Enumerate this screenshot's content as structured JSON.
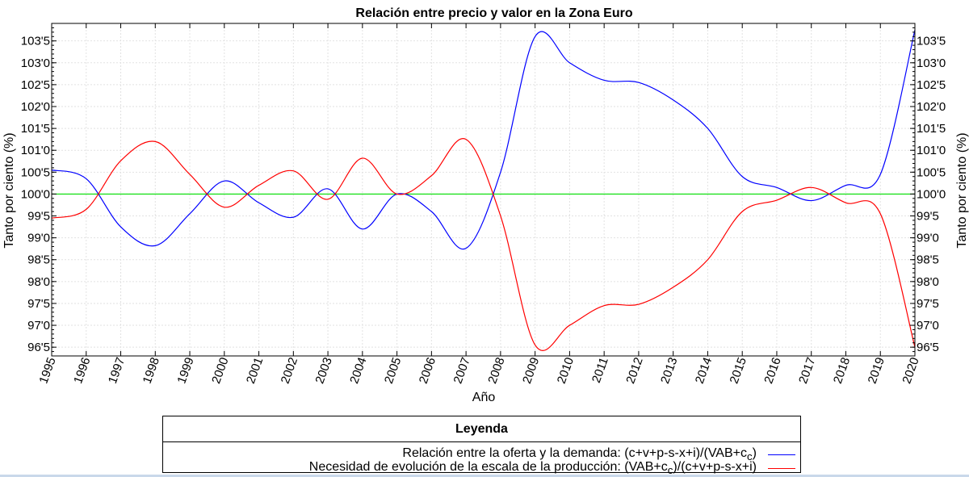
{
  "chart_data": {
    "type": "line",
    "title": "Relación entre precio y valor en la Zona Euro",
    "xlabel": "Año",
    "ylabel": "Tanto por ciento (%)",
    "ylabel_right": "Tanto por ciento (%)",
    "xlim": [
      1995,
      2020
    ],
    "ylim": [
      96.3,
      103.9
    ],
    "x_ticks": [
      "1995",
      "1996",
      "1997",
      "1998",
      "1999",
      "2000",
      "2001",
      "2002",
      "2003",
      "2004",
      "2005",
      "2006",
      "2007",
      "2008",
      "2009",
      "2010",
      "2011",
      "2012",
      "2013",
      "2014",
      "2015",
      "2016",
      "2017",
      "2018",
      "2019",
      "2020"
    ],
    "y_ticks": [
      {
        "value": 96.5,
        "label": "96'5"
      },
      {
        "value": 97.0,
        "label": "97'0"
      },
      {
        "value": 97.5,
        "label": "97'5"
      },
      {
        "value": 98.0,
        "label": "98'0"
      },
      {
        "value": 98.5,
        "label": "98'5"
      },
      {
        "value": 99.0,
        "label": "99'0"
      },
      {
        "value": 99.5,
        "label": "99'5"
      },
      {
        "value": 100.0,
        "label": "100'0"
      },
      {
        "value": 100.5,
        "label": "100'5"
      },
      {
        "value": 101.0,
        "label": "101'0"
      },
      {
        "value": 101.5,
        "label": "101'5"
      },
      {
        "value": 102.0,
        "label": "102'0"
      },
      {
        "value": 102.5,
        "label": "102'5"
      },
      {
        "value": 103.0,
        "label": "103'0"
      },
      {
        "value": 103.5,
        "label": "103'5"
      }
    ],
    "grid": true,
    "legend_position": "bottom",
    "reference_line": {
      "y": 100.0,
      "color": "#00dd00"
    },
    "series": [
      {
        "name": "Relación entre la oferta y la demanda: (c+v+p-s-x+i)/(VAB+c_c)",
        "color": "#0000ff",
        "x": [
          1995,
          1996,
          1997,
          1998,
          1999,
          2000,
          2001,
          2002,
          2003,
          2004,
          2005,
          2006,
          2007,
          2008,
          2009,
          2010,
          2011,
          2012,
          2013,
          2014,
          2015,
          2016,
          2017,
          2018,
          2019,
          2020
        ],
        "y": [
          100.55,
          100.35,
          99.25,
          98.82,
          99.55,
          100.3,
          99.8,
          99.47,
          100.12,
          99.2,
          100.0,
          99.6,
          98.76,
          100.5,
          103.6,
          103.0,
          102.6,
          102.55,
          102.15,
          101.5,
          100.4,
          100.15,
          99.85,
          100.2,
          100.45,
          103.75
        ]
      },
      {
        "name": "Necesidad de evolución de la escala de la producción: (VAB+c_c)/(c+v+p-s-x+i)",
        "color": "#ff0000",
        "x": [
          1995,
          1996,
          1997,
          1998,
          1999,
          2000,
          2001,
          2002,
          2003,
          2004,
          2005,
          2006,
          2007,
          2008,
          2009,
          2010,
          2011,
          2012,
          2013,
          2014,
          2015,
          2016,
          2017,
          2018,
          2019,
          2020
        ],
        "y": [
          99.45,
          99.65,
          100.76,
          101.2,
          100.45,
          99.7,
          100.2,
          100.53,
          99.88,
          100.82,
          100.0,
          100.42,
          101.25,
          99.5,
          96.55,
          97.0,
          97.45,
          97.48,
          97.87,
          98.5,
          99.6,
          99.86,
          100.15,
          99.8,
          99.55,
          96.5
        ]
      }
    ]
  },
  "legend": {
    "title": "Leyenda",
    "items": [
      {
        "text": "Relación entre la oferta y la demanda: (c+v+p-s-x+i)/(VAB+c",
        "sub": "c",
        "suffix": ")",
        "color": "#0000ff"
      },
      {
        "text": "Necesidad de evolución de la escala de la producción: (VAB+c",
        "sub": "c",
        "suffix": ")/(c+v+p-s-x+i)",
        "color": "#ff0000"
      }
    ]
  }
}
